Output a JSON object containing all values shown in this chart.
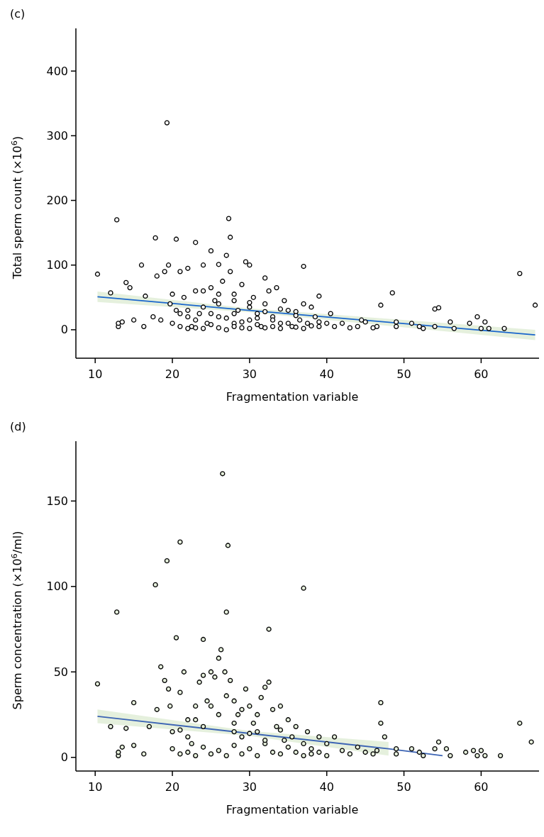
{
  "chart_data": [
    {
      "type": "scatter",
      "title": "(c)",
      "xlabel": "Fragmentation variable",
      "ylabel": "Total sperm count (×10$^{6}$)",
      "xlim": [
        7.5,
        67.5
      ],
      "ylim": [
        -44,
        466
      ],
      "xticks": [
        10,
        20,
        30,
        40,
        50,
        60
      ],
      "yticks": [
        0,
        100,
        200,
        300,
        400
      ],
      "grid": false,
      "series": [
        {
          "marker": "circle",
          "color": "#ffffff",
          "x": [
            10.3,
            12,
            12.8,
            13,
            13,
            13.5,
            14,
            14.5,
            15,
            16,
            16.3,
            16.5,
            17.5,
            17.8,
            18,
            18.5,
            19,
            19.3,
            19.5,
            19.7,
            20,
            20.5,
            20.5,
            21,
            21.5,
            22,
            22,
            22.5,
            23,
            23,
            23.5,
            24,
            24.5,
            25,
            25,
            25.5,
            26,
            26,
            26.5,
            27,
            27.3,
            27.5,
            27.5,
            28,
            28,
            28.5,
            29,
            29.5,
            30,
            30,
            30.5,
            31,
            31.5,
            32,
            32,
            32.5,
            33,
            33.5,
            34,
            34.5,
            35,
            35.5,
            36,
            36.5,
            37,
            37,
            37.5,
            38,
            38.5,
            39,
            39,
            40,
            40.5,
            41,
            42,
            43,
            44,
            44.5,
            45,
            46,
            46.5,
            47,
            48.5,
            49,
            49,
            51,
            52,
            52.5,
            54,
            54,
            54.5,
            56,
            56.5,
            58.5,
            59.5,
            60,
            60.5,
            61,
            63,
            65,
            67,
            21,
            22,
            23,
            24,
            25,
            26,
            27,
            28,
            29,
            30,
            31,
            32,
            33,
            34,
            35,
            36,
            37,
            38,
            39,
            20,
            22,
            24,
            26,
            28,
            30,
            32,
            34,
            36,
            25,
            27,
            29,
            31,
            33,
            23,
            21,
            24,
            26,
            28,
            30
          ],
          "values": [
            86,
            57,
            170,
            5,
            10,
            12,
            73,
            65,
            15,
            100,
            5,
            52,
            20,
            142,
            83,
            15,
            90,
            320,
            100,
            40,
            55,
            140,
            30,
            90,
            50,
            95,
            20,
            5,
            135,
            60,
            25,
            100,
            10,
            122,
            65,
            45,
            101,
            20,
            75,
            115,
            172,
            143,
            90,
            55,
            10,
            30,
            70,
            105,
            100,
            15,
            50,
            25,
            5,
            80,
            40,
            60,
            20,
            65,
            10,
            45,
            30,
            5,
            28,
            15,
            98,
            40,
            10,
            35,
            20,
            52,
            5,
            10,
            25,
            5,
            10,
            3,
            5,
            15,
            12,
            3,
            5,
            38,
            57,
            12,
            5,
            10,
            5,
            2,
            5,
            32,
            34,
            12,
            2,
            10,
            20,
            2,
            12,
            2,
            2,
            87,
            38,
            5,
            2,
            3,
            2,
            8,
            3,
            0,
            5,
            3,
            2,
            8,
            3,
            5,
            2,
            10,
            4,
            2,
            6,
            12,
            10,
            30,
            35,
            40,
            25,
            35,
            28,
            32,
            22,
            25,
            18,
            12,
            18,
            15,
            15,
            25,
            60,
            55,
            45,
            42
          ]
        },
        {
          "type": "line",
          "color": "#1a66cc",
          "x": [
            10.3,
            30,
            67
          ],
          "values": [
            51,
            30,
            -8
          ],
          "lower": [
            43,
            27,
            -16
          ],
          "upper": [
            59,
            33,
            0
          ]
        }
      ]
    },
    {
      "type": "scatter",
      "title": "(d)",
      "xlabel": "Fragmentation variable",
      "ylabel": "Sperm concentration (×10$^{6}$/ml)",
      "xlim": [
        7.5,
        67.5
      ],
      "ylim": [
        -8,
        185
      ],
      "xticks": [
        10,
        20,
        30,
        40,
        50,
        60
      ],
      "yticks": [
        0,
        50,
        100,
        150
      ],
      "grid": false,
      "series": [
        {
          "marker": "circle",
          "color": "#e6f0dc",
          "x": [
            10.3,
            12,
            12.8,
            13,
            13,
            13.5,
            14,
            15,
            15,
            16.3,
            17,
            17.8,
            18,
            18.5,
            19,
            19.3,
            19.5,
            19.7,
            20,
            20.5,
            21,
            21,
            21.5,
            22,
            22.5,
            23,
            23.5,
            24,
            24,
            24.5,
            25,
            25.5,
            26,
            26.3,
            26.5,
            26.8,
            27,
            27.2,
            27.5,
            28,
            28,
            28.5,
            29,
            29.5,
            30,
            30.5,
            31,
            31.5,
            32,
            32.5,
            32.5,
            33,
            33.5,
            34,
            34.5,
            35,
            35.5,
            36,
            37,
            37,
            37.5,
            38,
            39,
            40,
            41,
            42,
            43,
            44,
            45,
            46,
            46.5,
            47,
            47,
            47.5,
            49,
            49,
            51,
            52,
            52.5,
            54,
            54.5,
            55.5,
            56,
            58,
            59,
            59.5,
            60,
            60.5,
            62.5,
            65,
            66.5,
            20,
            21,
            22,
            23,
            24,
            25,
            26,
            27,
            28,
            29,
            30,
            31,
            32,
            33,
            34,
            35,
            36,
            37,
            38,
            39,
            40,
            22,
            24,
            26,
            28,
            30,
            32,
            34,
            25,
            27,
            29,
            23,
            21,
            31
          ],
          "values": [
            43,
            18,
            85,
            1,
            3,
            6,
            17,
            32,
            7,
            2,
            18,
            101,
            28,
            53,
            45,
            115,
            40,
            30,
            15,
            70,
            126,
            38,
            50,
            22,
            8,
            30,
            44,
            69,
            48,
            33,
            50,
            47,
            58,
            63,
            166,
            50,
            85,
            124,
            45,
            33,
            15,
            25,
            12,
            40,
            30,
            20,
            15,
            35,
            41,
            75,
            44,
            28,
            18,
            30,
            10,
            22,
            12,
            18,
            99,
            8,
            15,
            5,
            12,
            8,
            12,
            4,
            2,
            6,
            3,
            2,
            4,
            32,
            20,
            12,
            5,
            2,
            5,
            3,
            1,
            5,
            9,
            5,
            1,
            3,
            4,
            1,
            4,
            1,
            1,
            20,
            9,
            5,
            2,
            3,
            1,
            6,
            2,
            4,
            1,
            7,
            2,
            5,
            1,
            8,
            3,
            2,
            6,
            3,
            1,
            2,
            3,
            1,
            12,
            18,
            25,
            20,
            14,
            10,
            16,
            30,
            36,
            28,
            22,
            16,
            25
          ]
        },
        {
          "type": "line",
          "color": "#3c64b4",
          "x": [
            10.3,
            30,
            48,
            55
          ],
          "values": [
            24,
            14,
            5,
            1
          ],
          "lower": [
            20,
            12.5,
            1,
            null
          ],
          "upper": [
            28,
            15.5,
            9,
            null
          ]
        }
      ]
    }
  ]
}
